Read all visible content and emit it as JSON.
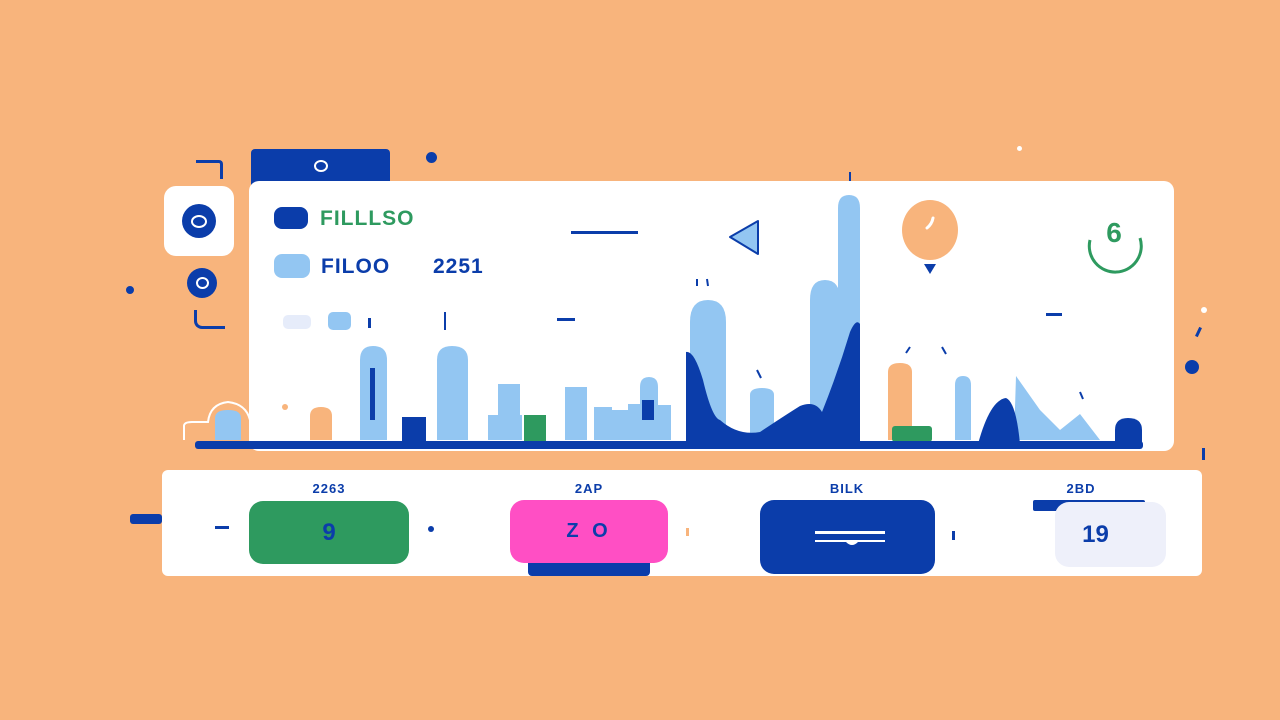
{
  "legend": [
    {
      "label": "FILLLSO",
      "color": "#2E9A5F"
    },
    {
      "label": "FILOO",
      "color": "#0B3DAA"
    }
  ],
  "legend_value": "2251",
  "badge_number": "6",
  "stats": [
    {
      "label": "2263",
      "value": "9",
      "bg": "#2E9A5F"
    },
    {
      "label": "2AP",
      "value": "Z O",
      "bg": "#FF4FC4"
    },
    {
      "label": "BILK",
      "value": "",
      "bg": "#0B3DAA"
    },
    {
      "label": "2BD",
      "value": "19",
      "bg": "#EEF0FA"
    }
  ],
  "colors": {
    "background": "#F8B47C",
    "primary": "#0B3DAA",
    "light_blue": "#93C6F2",
    "green": "#2E9A5F",
    "pink": "#FF4FC4",
    "peach": "#F8B47C"
  },
  "icons": {
    "side_main": "ring-icon",
    "pin": "location-pin-icon",
    "play": "play-back-icon",
    "badge": "circle-badge-icon"
  }
}
